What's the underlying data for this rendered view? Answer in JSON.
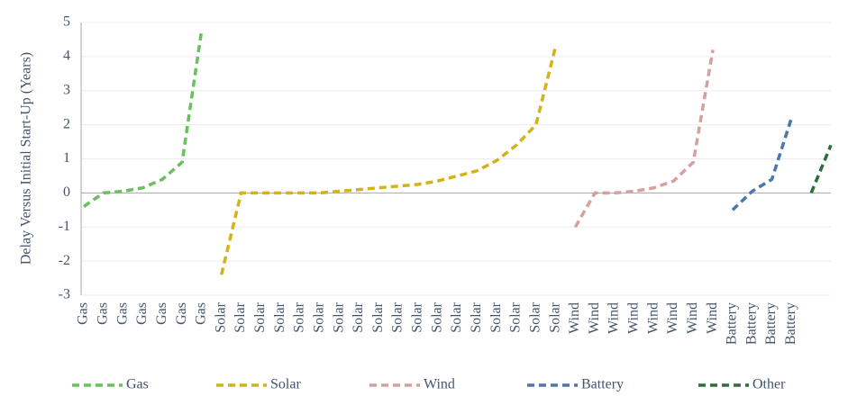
{
  "chart_data": {
    "type": "line",
    "y_label": "Delay Versus Initial Start-Up (Years)",
    "categories": [
      "Gas",
      "Gas",
      "Gas",
      "Gas",
      "Gas",
      "Gas",
      "Gas",
      "Solar",
      "Solar",
      "Solar",
      "Solar",
      "Solar",
      "Solar",
      "Solar",
      "Solar",
      "Solar",
      "Solar",
      "Solar",
      "Solar",
      "Solar",
      "Solar",
      "Solar",
      "Solar",
      "Solar",
      "Solar",
      "Wind",
      "Wind",
      "Wind",
      "Wind",
      "Wind",
      "Wind",
      "Wind",
      "Wind",
      "Battery",
      "Battery",
      "Battery",
      "Battery",
      null,
      null
    ],
    "series": [
      {
        "name": "Gas",
        "color": "#6abf5e",
        "values": [
          -0.4,
          0,
          0.05,
          0.15,
          0.4,
          0.9,
          4.8,
          null,
          null,
          null,
          null,
          null,
          null,
          null,
          null,
          null,
          null,
          null,
          null,
          null,
          null,
          null,
          null,
          null,
          null,
          null,
          null,
          null,
          null,
          null,
          null,
          null,
          null,
          null,
          null,
          null,
          null,
          null,
          null
        ]
      },
      {
        "name": "Solar",
        "color": "#d4b21a",
        "values": [
          null,
          null,
          null,
          null,
          null,
          null,
          null,
          -2.4,
          0,
          0,
          0,
          0,
          0,
          0.05,
          0.1,
          0.15,
          0.2,
          0.25,
          0.35,
          0.5,
          0.65,
          0.95,
          1.4,
          2.0,
          4.3,
          null,
          null,
          null,
          null,
          null,
          null,
          null,
          null,
          null,
          null,
          null,
          null,
          null,
          null
        ]
      },
      {
        "name": "Wind",
        "color": "#d4a0a0",
        "values": [
          null,
          null,
          null,
          null,
          null,
          null,
          null,
          null,
          null,
          null,
          null,
          null,
          null,
          null,
          null,
          null,
          null,
          null,
          null,
          null,
          null,
          null,
          null,
          null,
          null,
          -1.0,
          0,
          0,
          0.05,
          0.15,
          0.35,
          0.9,
          4.2,
          null,
          null,
          null,
          null,
          null,
          null
        ]
      },
      {
        "name": "Battery",
        "color": "#4b78a8",
        "values": [
          null,
          null,
          null,
          null,
          null,
          null,
          null,
          null,
          null,
          null,
          null,
          null,
          null,
          null,
          null,
          null,
          null,
          null,
          null,
          null,
          null,
          null,
          null,
          null,
          null,
          null,
          null,
          null,
          null,
          null,
          null,
          null,
          null,
          -0.5,
          0.05,
          0.4,
          2.2,
          null,
          null
        ]
      },
      {
        "name": "Other",
        "color": "#2d6e3a",
        "values": [
          null,
          null,
          null,
          null,
          null,
          null,
          null,
          null,
          null,
          null,
          null,
          null,
          null,
          null,
          null,
          null,
          null,
          null,
          null,
          null,
          null,
          null,
          null,
          null,
          null,
          null,
          null,
          null,
          null,
          null,
          null,
          null,
          null,
          null,
          null,
          null,
          null,
          0,
          1.4
        ]
      }
    ],
    "ylim": [
      -3,
      5
    ],
    "yticks": [
      -3,
      -2,
      -1,
      0,
      1,
      2,
      3,
      4,
      5
    ],
    "grid": true
  }
}
